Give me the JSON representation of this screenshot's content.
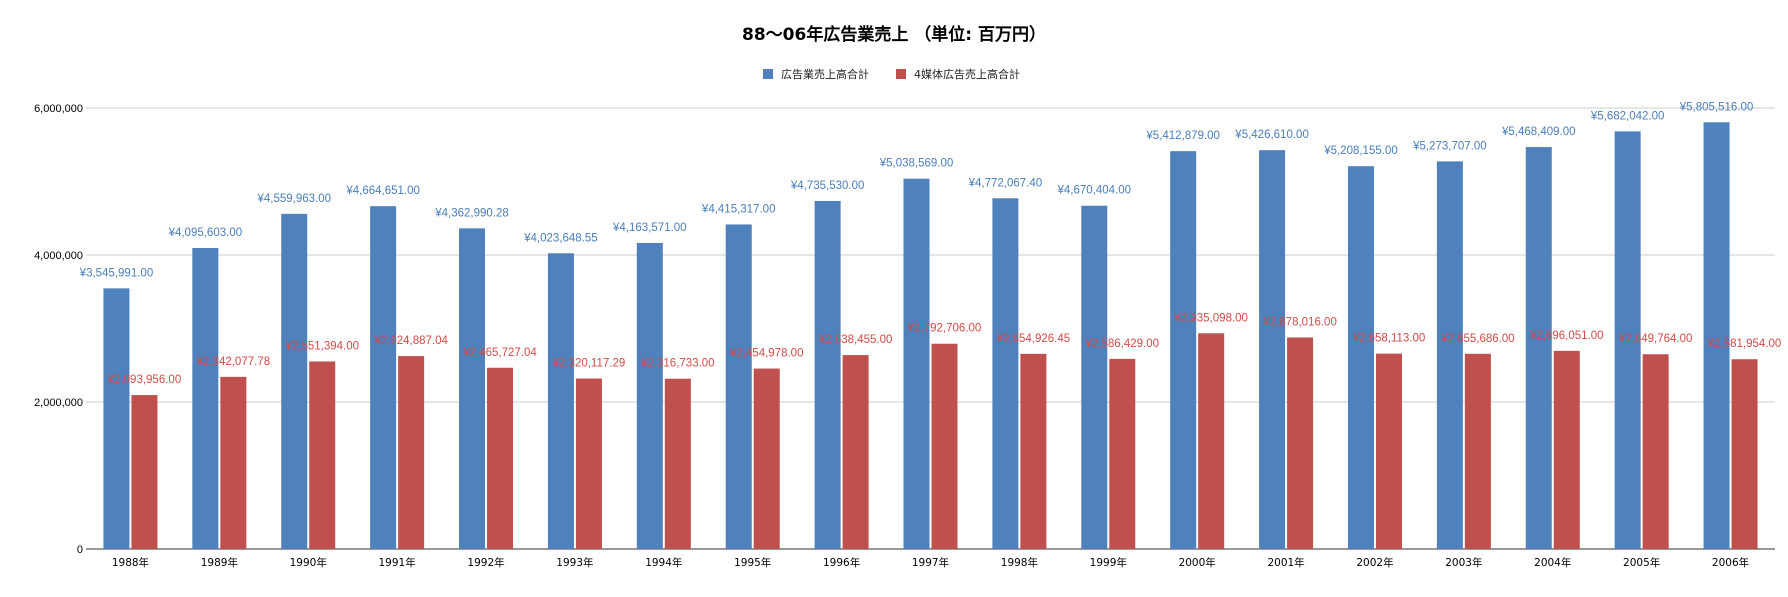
{
  "chart_data": {
    "type": "bar",
    "title": "88～06年広告業売上 （単位: 百万円）",
    "xlabel": "",
    "ylabel": "",
    "ylim": [
      0,
      6000000
    ],
    "yticks": [
      0,
      2000000,
      4000000,
      6000000
    ],
    "ytick_labels": [
      "0",
      "2,000,000",
      "4,000,000",
      "6,000,000"
    ],
    "grid": true,
    "legend_position": "top-center",
    "categories": [
      "1988年",
      "1989年",
      "1990年",
      "1991年",
      "1992年",
      "1993年",
      "1994年",
      "1995年",
      "1996年",
      "1997年",
      "1998年",
      "1999年",
      "2000年",
      "2001年",
      "2002年",
      "2003年",
      "2004年",
      "2005年",
      "2006年"
    ],
    "series": [
      {
        "name": "広告業売上高合計",
        "color": "#4f81bd",
        "label_color": "#4a7ebb",
        "values": [
          3545991.0,
          4095603.0,
          4559963.0,
          4664651.0,
          4362990.28,
          4023648.55,
          4163571.0,
          4415317.0,
          4735530.0,
          5038569.0,
          4772067.4,
          4670404.0,
          5412879.0,
          5426610.0,
          5208155.0,
          5273707.0,
          5468409.0,
          5682042.0,
          5805516.0
        ],
        "labels": [
          "¥3,545,991.00",
          "¥4,095,603.00",
          "¥4,559,963.00",
          "¥4,664,651.00",
          "¥4,362,990.28",
          "¥4,023,648.55",
          "¥4,163,571.00",
          "¥4,415,317.00",
          "¥4,735,530.00",
          "¥5,038,569.00",
          "¥4,772,067.40",
          "¥4,670,404.00",
          "¥5,412,879.00",
          "¥5,426,610.00",
          "¥5,208,155.00",
          "¥5,273,707.00",
          "¥5,468,409.00",
          "¥5,682,042.00",
          "¥5,805,516.00"
        ]
      },
      {
        "name": "4媒体広告売上高合計",
        "color": "#c0504d",
        "label_color": "#d24b47",
        "values": [
          2093956.0,
          2342077.78,
          2551394.0,
          2624887.04,
          2465727.04,
          2320117.29,
          2316733.0,
          2454978.0,
          2638455.0,
          2792706.0,
          2654926.45,
          2586429.0,
          2935098.0,
          2878016.0,
          2658113.0,
          2655686.0,
          2696051.0,
          2649764.0,
          2581954.0
        ],
        "labels": [
          "¥2,093,956.00",
          "¥2,342,077.78",
          "¥2,551,394.00",
          "¥2,624,887.04",
          "¥2,465,727.04",
          "¥2,320,117.29",
          "¥2,316,733.00",
          "¥2,454,978.00",
          "¥2,638,455.00",
          "¥2,792,706.00",
          "¥2,654,926.45",
          "¥2,586,429.00",
          "¥2,935,098.00",
          "¥2,878,016.00",
          "¥2,658,113.00",
          "¥2,655,686.00",
          "¥2,696,051.00",
          "¥2,649,764.00",
          "¥2,581,954.00"
        ]
      }
    ]
  }
}
